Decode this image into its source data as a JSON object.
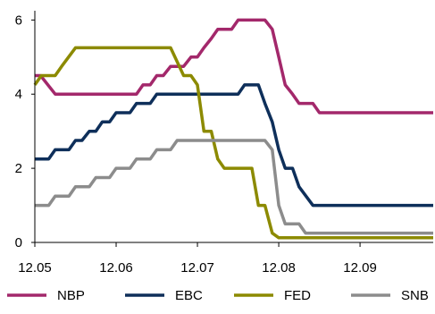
{
  "chart_data": {
    "type": "line",
    "title": "",
    "xlabel": "",
    "ylabel": "",
    "xlim": [
      2005.0,
      2009.9
    ],
    "ylim": [
      0,
      6.25
    ],
    "yticks": [
      0,
      2,
      4,
      6
    ],
    "ytick_labels": [
      "0",
      "2",
      "4",
      "6"
    ],
    "xticks": [
      2005.0,
      2006.0,
      2007.0,
      2008.0,
      2009.0
    ],
    "xtick_labels": [
      "12.05",
      "12.06",
      "12.07",
      "12.08",
      "12.09"
    ],
    "grid": false,
    "legend_position": "bottom",
    "series": [
      {
        "name": "NBP",
        "color": "#A3286B",
        "points": [
          [
            2005.0,
            4.5
          ],
          [
            2005.07,
            4.5
          ],
          [
            2005.25,
            4.0
          ],
          [
            2005.33,
            4.0
          ],
          [
            2006.0,
            4.0
          ],
          [
            2006.08,
            4.0
          ],
          [
            2006.17,
            4.0
          ],
          [
            2006.25,
            4.0
          ],
          [
            2006.33,
            4.25
          ],
          [
            2006.42,
            4.25
          ],
          [
            2006.5,
            4.5
          ],
          [
            2006.58,
            4.5
          ],
          [
            2006.67,
            4.75
          ],
          [
            2006.75,
            4.75
          ],
          [
            2006.83,
            4.75
          ],
          [
            2006.92,
            5.0
          ],
          [
            2007.0,
            5.0
          ],
          [
            2007.08,
            5.25
          ],
          [
            2007.17,
            5.5
          ],
          [
            2007.25,
            5.75
          ],
          [
            2007.33,
            5.75
          ],
          [
            2007.42,
            5.75
          ],
          [
            2007.5,
            6.0
          ],
          [
            2007.58,
            6.0
          ],
          [
            2007.67,
            6.0
          ],
          [
            2007.75,
            6.0
          ],
          [
            2007.83,
            6.0
          ],
          [
            2007.92,
            5.75
          ],
          [
            2008.0,
            5.0
          ],
          [
            2008.08,
            4.25
          ],
          [
            2008.17,
            4.0
          ],
          [
            2008.25,
            3.75
          ],
          [
            2008.33,
            3.75
          ],
          [
            2008.42,
            3.75
          ],
          [
            2008.5,
            3.5
          ],
          [
            2009.9,
            3.5
          ]
        ]
      },
      {
        "name": "EBC",
        "color": "#0E2F5A",
        "points": [
          [
            2005.0,
            2.25
          ],
          [
            2005.17,
            2.25
          ],
          [
            2005.25,
            2.5
          ],
          [
            2005.42,
            2.5
          ],
          [
            2005.5,
            2.75
          ],
          [
            2005.58,
            2.75
          ],
          [
            2005.67,
            3.0
          ],
          [
            2005.75,
            3.0
          ],
          [
            2005.83,
            3.25
          ],
          [
            2005.92,
            3.25
          ],
          [
            2006.0,
            3.5
          ],
          [
            2006.17,
            3.5
          ],
          [
            2006.25,
            3.75
          ],
          [
            2006.42,
            3.75
          ],
          [
            2006.5,
            4.0
          ],
          [
            2007.5,
            4.0
          ],
          [
            2007.58,
            4.25
          ],
          [
            2007.75,
            4.25
          ],
          [
            2007.83,
            3.75
          ],
          [
            2007.92,
            3.25
          ],
          [
            2008.0,
            2.5
          ],
          [
            2008.08,
            2.0
          ],
          [
            2008.17,
            2.0
          ],
          [
            2008.25,
            1.5
          ],
          [
            2008.42,
            1.0
          ],
          [
            2009.9,
            1.0
          ]
        ]
      },
      {
        "name": "FED",
        "color": "#8C8A00",
        "points": [
          [
            2005.0,
            4.25
          ],
          [
            2005.08,
            4.5
          ],
          [
            2005.25,
            4.5
          ],
          [
            2005.33,
            4.75
          ],
          [
            2005.5,
            5.25
          ],
          [
            2006.67,
            5.25
          ],
          [
            2006.83,
            4.5
          ],
          [
            2006.92,
            4.5
          ],
          [
            2007.0,
            4.25
          ],
          [
            2007.08,
            3.0
          ],
          [
            2007.17,
            3.0
          ],
          [
            2007.25,
            2.25
          ],
          [
            2007.33,
            2.0
          ],
          [
            2007.67,
            2.0
          ],
          [
            2007.75,
            1.0
          ],
          [
            2007.83,
            1.0
          ],
          [
            2007.92,
            0.25
          ],
          [
            2008.0,
            0.125
          ],
          [
            2009.9,
            0.125
          ]
        ]
      },
      {
        "name": "SNB",
        "color": "#8C8C8C",
        "points": [
          [
            2005.0,
            1.0
          ],
          [
            2005.17,
            1.0
          ],
          [
            2005.25,
            1.25
          ],
          [
            2005.42,
            1.25
          ],
          [
            2005.5,
            1.5
          ],
          [
            2005.67,
            1.5
          ],
          [
            2005.75,
            1.75
          ],
          [
            2005.92,
            1.75
          ],
          [
            2006.0,
            2.0
          ],
          [
            2006.17,
            2.0
          ],
          [
            2006.25,
            2.25
          ],
          [
            2006.42,
            2.25
          ],
          [
            2006.5,
            2.5
          ],
          [
            2006.67,
            2.5
          ],
          [
            2006.75,
            2.75
          ],
          [
            2007.83,
            2.75
          ],
          [
            2007.92,
            2.5
          ],
          [
            2008.0,
            1.0
          ],
          [
            2008.08,
            0.5
          ],
          [
            2008.25,
            0.5
          ],
          [
            2008.33,
            0.25
          ],
          [
            2009.9,
            0.25
          ]
        ]
      }
    ]
  }
}
